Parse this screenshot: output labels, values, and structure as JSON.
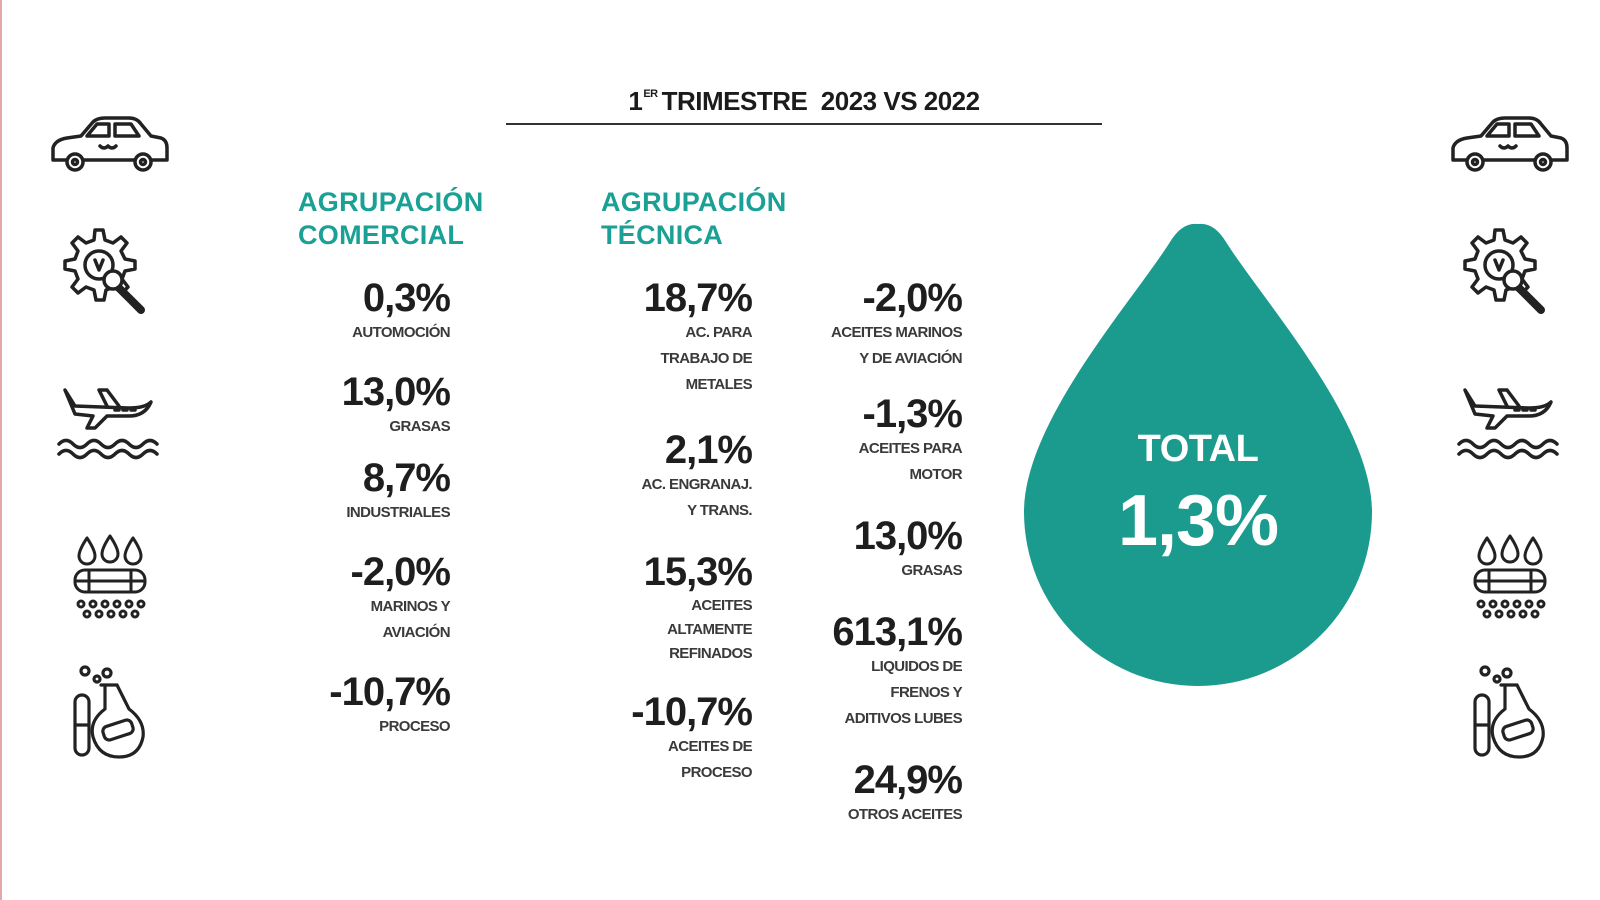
{
  "header": {
    "title_ordinal": "1",
    "title_suffix": "ER",
    "title_rest": "TRIMESTRE  2023 VS 2022"
  },
  "icons": [
    "car-icon",
    "gear-magnifier-icon",
    "plane-waves-icon",
    "oil-drops-pipeline-icon",
    "chemistry-flask-icon"
  ],
  "colors": {
    "accent": "#1aa095",
    "drop": "#1b9a8e",
    "text": "#222222"
  },
  "commercial": {
    "heading_line1": "AGRUPACIÓN",
    "heading_line2": "COMERCIAL",
    "items": [
      {
        "value": "0,3%",
        "label": [
          "AUTOMOCIÓN"
        ]
      },
      {
        "value": "13,0%",
        "label": [
          "GRASAS"
        ]
      },
      {
        "value": "8,7%",
        "label": [
          "INDUSTRIALES"
        ]
      },
      {
        "value": "-2,0%",
        "label": [
          "MARINOS Y",
          "AVIACIÓN"
        ]
      },
      {
        "value": "-10,7%",
        "label": [
          "PROCESO"
        ]
      }
    ]
  },
  "technical": {
    "heading_line1": "AGRUPACIÓN",
    "heading_line2": "TÉCNICA",
    "col1": [
      {
        "value": "18,7%",
        "label": [
          "AC. PARA",
          "TRABAJO DE",
          "METALES"
        ]
      },
      {
        "value": "2,1%",
        "label": [
          "AC. ENGRANAJ.",
          "Y TRANS."
        ]
      },
      {
        "value": "15,3%",
        "label": [
          "ACEITES",
          "ALTAMENTE",
          "REFINADOS"
        ]
      },
      {
        "value": "-10,7%",
        "label": [
          "ACEITES DE",
          "PROCESO"
        ]
      }
    ],
    "col2": [
      {
        "value": "-2,0%",
        "label": [
          "ACEITES MARINOS",
          "Y DE AVIACIÓN"
        ]
      },
      {
        "value": "-1,3%",
        "label": [
          "ACEITES PARA",
          "MOTOR"
        ]
      },
      {
        "value": "13,0%",
        "label": [
          "GRASAS"
        ]
      },
      {
        "value": "613,1%",
        "label": [
          "LIQUIDOS DE",
          "FRENOS Y",
          "ADITIVOS LUBES"
        ]
      },
      {
        "value": "24,9%",
        "label": [
          "OTROS ACEITES"
        ]
      }
    ]
  },
  "total": {
    "label": "TOTAL",
    "value": "1,3%"
  }
}
